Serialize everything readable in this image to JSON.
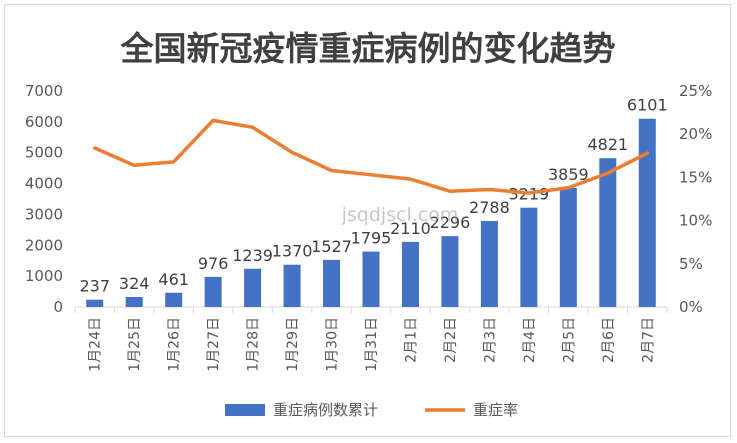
{
  "chart_data": {
    "type": "bar+line",
    "title": "全国新冠疫情重症病例的变化趋势",
    "categories": [
      "1月24日",
      "1月25日",
      "1月26日",
      "1月27日",
      "1月28日",
      "1月29日",
      "1月30日",
      "1月31日",
      "2月1日",
      "2月2日",
      "2月3日",
      "2月4日",
      "2月5日",
      "2月6日",
      "2月7日"
    ],
    "series": [
      {
        "name": "重症病例数累计",
        "type": "bar",
        "axis": "left",
        "color": "#4472c4",
        "values": [
          237,
          324,
          461,
          976,
          1239,
          1370,
          1527,
          1795,
          2110,
          2296,
          2788,
          3219,
          3859,
          4821,
          6101
        ]
      },
      {
        "name": "重症率",
        "type": "line",
        "axis": "right",
        "color": "#ed7d31",
        "values": [
          18.4,
          16.4,
          16.8,
          21.6,
          20.8,
          17.9,
          15.8,
          15.3,
          14.8,
          13.4,
          13.6,
          13.2,
          13.8,
          15.5,
          17.8
        ]
      }
    ],
    "y_left": {
      "min": 0,
      "max": 7000,
      "step": 1000,
      "ticks": [
        "0",
        "1000",
        "2000",
        "3000",
        "4000",
        "5000",
        "6000",
        "7000"
      ]
    },
    "y_right": {
      "min": 0,
      "max": 25,
      "step": 5,
      "ticks": [
        "0%",
        "5%",
        "10%",
        "15%",
        "20%",
        "25%"
      ]
    },
    "data_labels": [
      "237",
      "324",
      "461",
      "976",
      "1239",
      "1370",
      "1527",
      "1795",
      "2110",
      "2296",
      "2788",
      "3219",
      "3859",
      "4821",
      "6101"
    ],
    "grid": false,
    "legend_position": "bottom"
  },
  "watermark": "jsqdjscl.com"
}
